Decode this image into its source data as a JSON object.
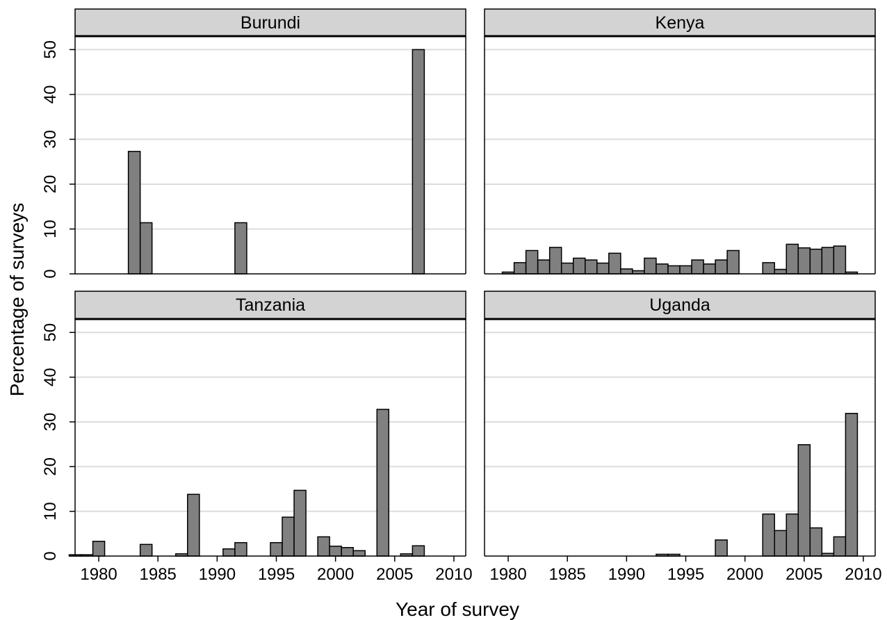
{
  "chart_data": {
    "type": "bar",
    "xlabel": "Year of survey",
    "ylabel": "Percentage of surveys",
    "xlim": [
      1978,
      2011
    ],
    "ylim": [
      0,
      53
    ],
    "xticks": [
      1980,
      1985,
      1990,
      1995,
      2000,
      2005,
      2010
    ],
    "yticks": [
      0,
      10,
      20,
      30,
      40,
      50
    ],
    "grid": "horizontal",
    "bar_color": "#808080",
    "panels": [
      {
        "title": "Burundi",
        "years": [
          1983,
          1984,
          1992,
          2007
        ],
        "values": [
          27.3,
          11.4,
          11.4,
          50
        ]
      },
      {
        "title": "Kenya",
        "years": [
          1980,
          1981,
          1982,
          1983,
          1984,
          1985,
          1986,
          1987,
          1988,
          1989,
          1990,
          1991,
          1992,
          1993,
          1994,
          1995,
          1996,
          1997,
          1998,
          1999,
          2002,
          2003,
          2004,
          2005,
          2006,
          2007,
          2008,
          2009
        ],
        "values": [
          0.4,
          2.5,
          5.2,
          3.1,
          5.9,
          2.4,
          3.5,
          3.1,
          2.4,
          4.6,
          1.1,
          0.7,
          3.5,
          2.2,
          1.8,
          1.8,
          3.1,
          2.2,
          3.1,
          5.2,
          2.5,
          1.0,
          6.6,
          5.8,
          5.5,
          5.9,
          6.2,
          0.4
        ]
      },
      {
        "title": "Tanzania",
        "years": [
          1978,
          1979,
          1980,
          1984,
          1987,
          1988,
          1991,
          1992,
          1995,
          1996,
          1997,
          1999,
          2000,
          2001,
          2002,
          2004,
          2006,
          2007
        ],
        "values": [
          0.3,
          0.3,
          3.3,
          2.6,
          0.5,
          13.8,
          1.6,
          3.0,
          3.0,
          8.7,
          14.7,
          4.3,
          2.2,
          1.9,
          1.2,
          32.8,
          0.5,
          2.3
        ]
      },
      {
        "title": "Uganda",
        "years": [
          1993,
          1994,
          1998,
          2002,
          2003,
          2004,
          2005,
          2006,
          2007,
          2008,
          2009
        ],
        "values": [
          0.4,
          0.4,
          3.6,
          9.4,
          5.7,
          9.4,
          24.9,
          6.3,
          0.6,
          4.3,
          31.9
        ]
      }
    ]
  }
}
